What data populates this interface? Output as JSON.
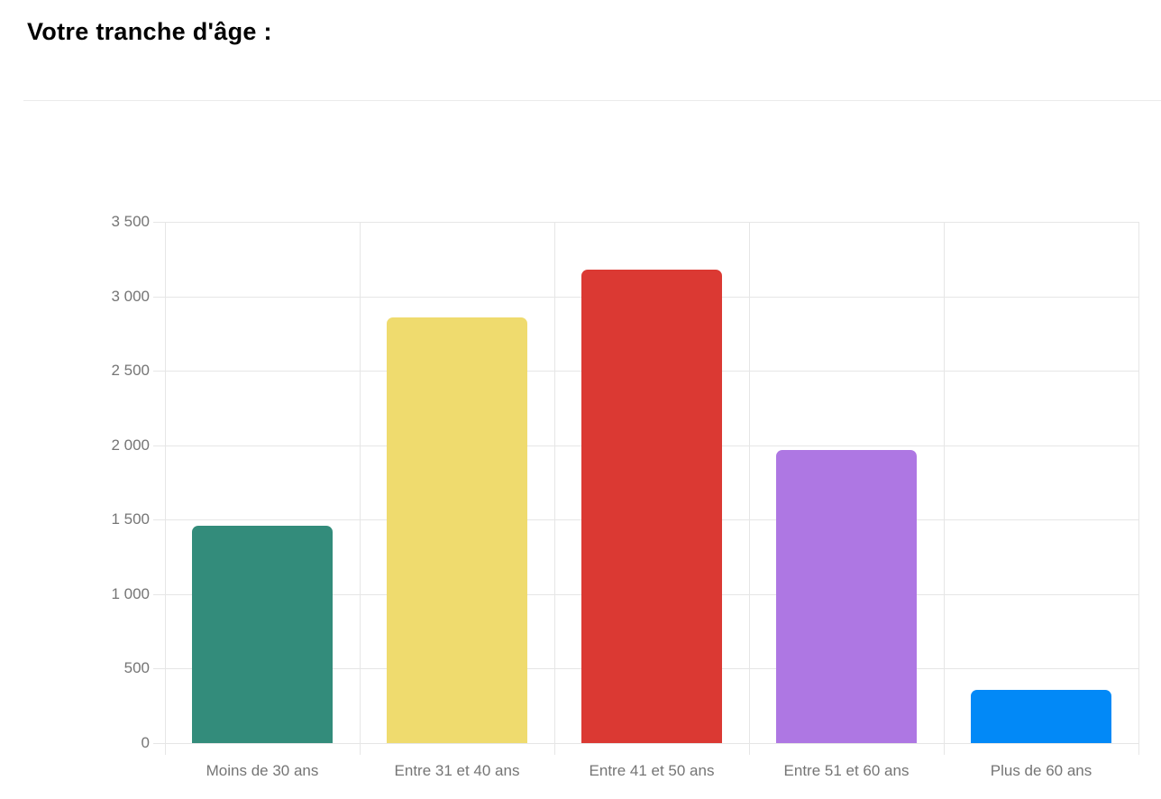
{
  "page": {
    "title": "Votre tranche d'âge :",
    "title_color": "#000000",
    "background_color": "#ffffff",
    "divider_color": "#ebebeb"
  },
  "chart_data": {
    "type": "bar",
    "title": "Votre tranche d'âge :",
    "categories": [
      "Moins de 30 ans",
      "Entre 31 et 40 ans",
      "Entre 41 et 50 ans",
      "Entre 51 et 60 ans",
      "Plus de 60 ans"
    ],
    "values": [
      1460,
      2860,
      3180,
      1970,
      360
    ],
    "bar_colors": [
      "#338C7B",
      "#EFDB6E",
      "#DB3933",
      "#AE77E3",
      "#0289F7"
    ],
    "ylim": [
      0,
      3500
    ],
    "ytick_step": 500,
    "ytick_labels": [
      "0",
      "500",
      "1 000",
      "1 500",
      "2 000",
      "2 500",
      "3 000",
      "3 500"
    ],
    "xlabel": "",
    "ylabel": "",
    "grid": "on",
    "grid_color": "#e6e6e6",
    "tick_label_color": "#757575",
    "legend": "none"
  }
}
